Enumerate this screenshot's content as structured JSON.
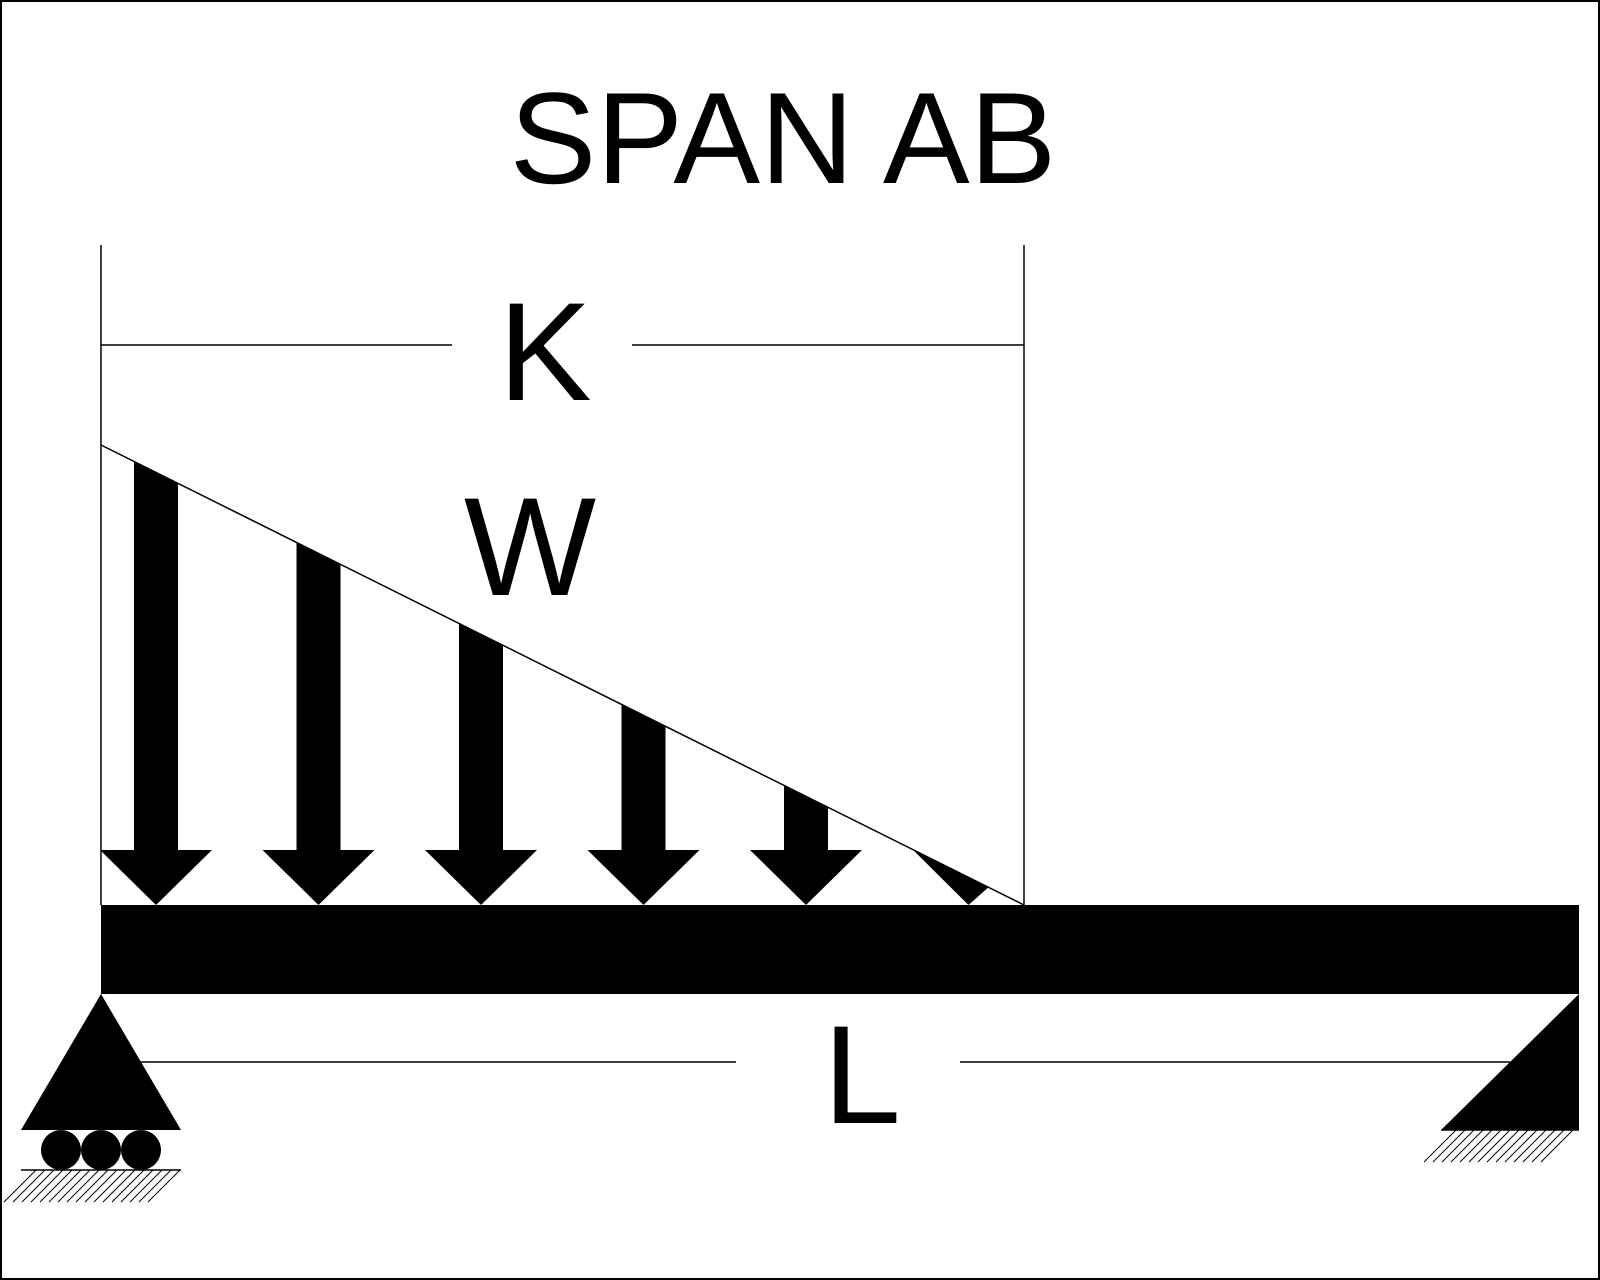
{
  "title": "SPAN AB",
  "dimension_k": {
    "label": "K"
  },
  "dimension_l": {
    "label": "L"
  },
  "load": {
    "label": "W",
    "type": "triangular",
    "arrow_count": 6
  },
  "supports": {
    "left": "roller",
    "right": "fixed"
  },
  "colors": {
    "ink": "#000000",
    "background": "#ffffff"
  }
}
